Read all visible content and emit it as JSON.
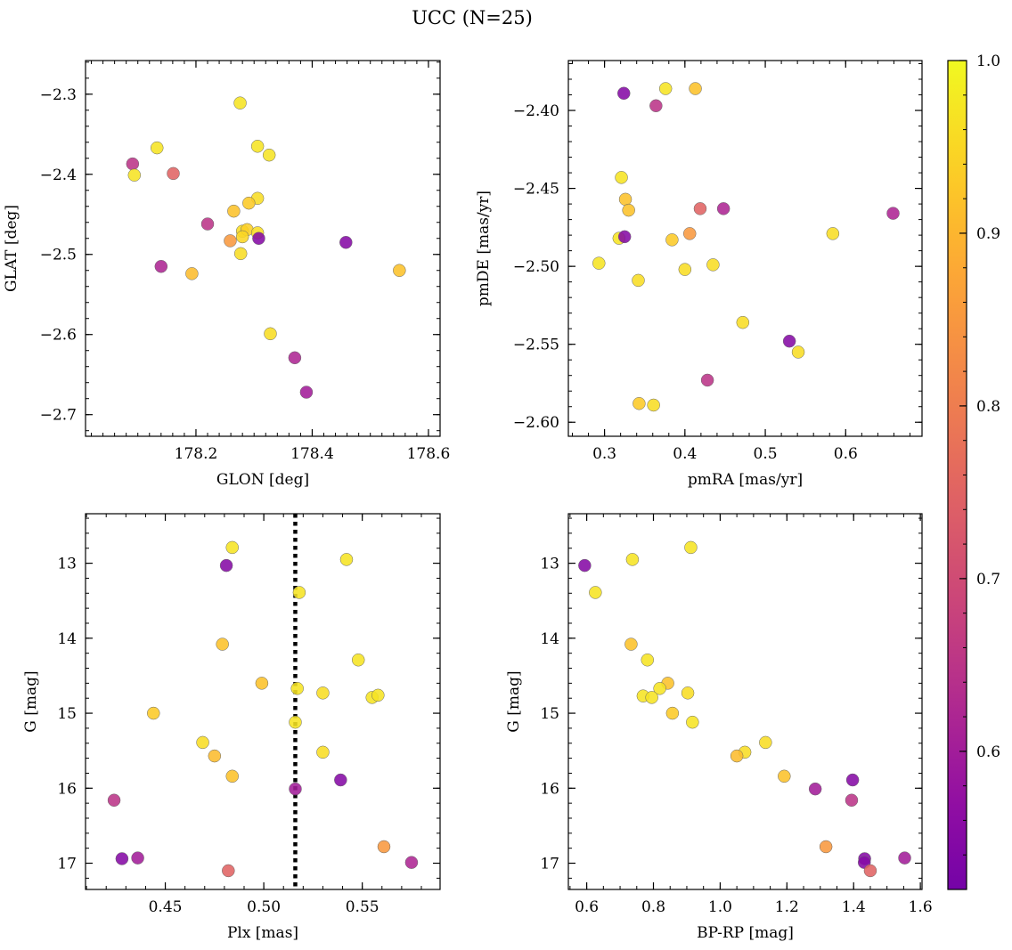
{
  "figure": {
    "title": "UCC (N=25)",
    "colorbar": {
      "range": [
        0.52,
        1.0
      ],
      "ticks": [
        0.6,
        0.7,
        0.8,
        0.9,
        1.0
      ],
      "tick_labels": [
        "0.6",
        "0.7",
        "0.8",
        "0.9",
        "1.0"
      ],
      "colormap": "plasma"
    }
  },
  "chart_data": [
    {
      "type": "scatter",
      "xlabel": "GLON [deg]",
      "ylabel": "GLAT [deg]",
      "xlim": [
        178.01,
        178.62
      ],
      "ylim": [
        -2.727,
        -2.258
      ],
      "xticks": [
        178.2,
        178.4,
        178.6
      ],
      "xtick_labels": [
        "178.2",
        "178.4",
        "178.6"
      ],
      "yticks": [
        -2.3,
        -2.4,
        -2.5,
        -2.6,
        -2.7
      ],
      "ytick_labels": [
        "−2.3",
        "−2.4",
        "−2.5",
        "−2.6",
        "−2.7"
      ],
      "y_inverted": false,
      "points": [
        {
          "x": 178.276,
          "y": -2.311,
          "c": 0.97
        },
        {
          "x": 178.133,
          "y": -2.367,
          "c": 0.97
        },
        {
          "x": 178.306,
          "y": -2.365,
          "c": 0.97
        },
        {
          "x": 178.326,
          "y": -2.376,
          "c": 0.97
        },
        {
          "x": 178.091,
          "y": -2.387,
          "c": 0.65
        },
        {
          "x": 178.094,
          "y": -2.401,
          "c": 0.97
        },
        {
          "x": 178.161,
          "y": -2.399,
          "c": 0.75
        },
        {
          "x": 178.306,
          "y": -2.43,
          "c": 0.96
        },
        {
          "x": 178.291,
          "y": -2.436,
          "c": 0.93
        },
        {
          "x": 178.265,
          "y": -2.446,
          "c": 0.92
        },
        {
          "x": 178.22,
          "y": -2.462,
          "c": 0.65
        },
        {
          "x": 178.28,
          "y": -2.471,
          "c": 0.96
        },
        {
          "x": 178.288,
          "y": -2.469,
          "c": 0.94
        },
        {
          "x": 178.306,
          "y": -2.473,
          "c": 0.96
        },
        {
          "x": 178.28,
          "y": -2.478,
          "c": 0.95
        },
        {
          "x": 178.259,
          "y": -2.483,
          "c": 0.85
        },
        {
          "x": 178.308,
          "y": -2.48,
          "c": 0.55
        },
        {
          "x": 178.458,
          "y": -2.485,
          "c": 0.55
        },
        {
          "x": 178.277,
          "y": -2.499,
          "c": 0.96
        },
        {
          "x": 178.14,
          "y": -2.515,
          "c": 0.62
        },
        {
          "x": 178.193,
          "y": -2.524,
          "c": 0.91
        },
        {
          "x": 178.55,
          "y": -2.52,
          "c": 0.92
        },
        {
          "x": 178.328,
          "y": -2.599,
          "c": 0.96
        },
        {
          "x": 178.37,
          "y": -2.629,
          "c": 0.62
        },
        {
          "x": 178.39,
          "y": -2.672,
          "c": 0.6
        }
      ]
    },
    {
      "type": "scatter",
      "xlabel": "pmRA [mas/yr]",
      "ylabel": "pmDE [mas/yr]",
      "xlim": [
        0.255,
        0.695
      ],
      "ylim": [
        -2.609,
        -2.368
      ],
      "xticks": [
        0.3,
        0.4,
        0.5,
        0.6
      ],
      "xtick_labels": [
        "0.3",
        "0.4",
        "0.5",
        "0.6"
      ],
      "yticks": [
        -2.4,
        -2.45,
        -2.5,
        -2.55,
        -2.6
      ],
      "ytick_labels": [
        "−2.40",
        "−2.45",
        "−2.50",
        "−2.55",
        "−2.60"
      ],
      "y_inverted": false,
      "points": [
        {
          "x": 0.376,
          "y": -2.386,
          "c": 0.97
        },
        {
          "x": 0.413,
          "y": -2.386,
          "c": 0.92
        },
        {
          "x": 0.324,
          "y": -2.389,
          "c": 0.55
        },
        {
          "x": 0.364,
          "y": -2.397,
          "c": 0.65
        },
        {
          "x": 0.321,
          "y": -2.443,
          "c": 0.97
        },
        {
          "x": 0.326,
          "y": -2.457,
          "c": 0.92
        },
        {
          "x": 0.33,
          "y": -2.464,
          "c": 0.92
        },
        {
          "x": 0.419,
          "y": -2.463,
          "c": 0.75
        },
        {
          "x": 0.448,
          "y": -2.463,
          "c": 0.62
        },
        {
          "x": 0.659,
          "y": -2.466,
          "c": 0.62
        },
        {
          "x": 0.318,
          "y": -2.482,
          "c": 0.97
        },
        {
          "x": 0.325,
          "y": -2.481,
          "c": 0.55
        },
        {
          "x": 0.384,
          "y": -2.483,
          "c": 0.93
        },
        {
          "x": 0.406,
          "y": -2.479,
          "c": 0.85
        },
        {
          "x": 0.584,
          "y": -2.479,
          "c": 0.96
        },
        {
          "x": 0.293,
          "y": -2.498,
          "c": 0.97
        },
        {
          "x": 0.4,
          "y": -2.502,
          "c": 0.96
        },
        {
          "x": 0.435,
          "y": -2.499,
          "c": 0.96
        },
        {
          "x": 0.342,
          "y": -2.509,
          "c": 0.96
        },
        {
          "x": 0.472,
          "y": -2.536,
          "c": 0.96
        },
        {
          "x": 0.53,
          "y": -2.548,
          "c": 0.55
        },
        {
          "x": 0.541,
          "y": -2.555,
          "c": 0.96
        },
        {
          "x": 0.428,
          "y": -2.573,
          "c": 0.65
        },
        {
          "x": 0.343,
          "y": -2.588,
          "c": 0.93
        },
        {
          "x": 0.361,
          "y": -2.589,
          "c": 0.96
        }
      ]
    },
    {
      "type": "scatter",
      "xlabel": "Plx [mas]",
      "ylabel": "G [mag]",
      "xlim": [
        0.4095,
        0.5895
      ],
      "ylim": [
        12.34,
        17.35
      ],
      "xticks": [
        0.45,
        0.5,
        0.55
      ],
      "xtick_labels": [
        "0.45",
        "0.50",
        "0.55"
      ],
      "yticks": [
        13,
        14,
        15,
        16,
        17
      ],
      "ytick_labels": [
        "13",
        "14",
        "15",
        "16",
        "17"
      ],
      "y_inverted": true,
      "vline": {
        "x": 0.516,
        "style": "dotted"
      },
      "points": [
        {
          "x": 0.484,
          "y": 12.79,
          "c": 0.97
        },
        {
          "x": 0.542,
          "y": 12.95,
          "c": 0.97
        },
        {
          "x": 0.481,
          "y": 13.03,
          "c": 0.55
        },
        {
          "x": 0.518,
          "y": 13.39,
          "c": 0.97
        },
        {
          "x": 0.479,
          "y": 14.08,
          "c": 0.92
        },
        {
          "x": 0.548,
          "y": 14.29,
          "c": 0.97
        },
        {
          "x": 0.499,
          "y": 14.6,
          "c": 0.92
        },
        {
          "x": 0.517,
          "y": 14.67,
          "c": 0.97
        },
        {
          "x": 0.53,
          "y": 14.73,
          "c": 0.96
        },
        {
          "x": 0.555,
          "y": 14.79,
          "c": 0.97
        },
        {
          "x": 0.558,
          "y": 14.76,
          "c": 0.97
        },
        {
          "x": 0.444,
          "y": 15.0,
          "c": 0.93
        },
        {
          "x": 0.516,
          "y": 15.12,
          "c": 0.97
        },
        {
          "x": 0.469,
          "y": 15.39,
          "c": 0.96
        },
        {
          "x": 0.53,
          "y": 15.52,
          "c": 0.96
        },
        {
          "x": 0.475,
          "y": 15.57,
          "c": 0.91
        },
        {
          "x": 0.484,
          "y": 15.84,
          "c": 0.92
        },
        {
          "x": 0.539,
          "y": 15.89,
          "c": 0.55
        },
        {
          "x": 0.516,
          "y": 16.01,
          "c": 0.6
        },
        {
          "x": 0.424,
          "y": 16.16,
          "c": 0.65
        },
        {
          "x": 0.561,
          "y": 16.78,
          "c": 0.85
        },
        {
          "x": 0.428,
          "y": 16.94,
          "c": 0.55
        },
        {
          "x": 0.436,
          "y": 16.93,
          "c": 0.6
        },
        {
          "x": 0.575,
          "y": 16.99,
          "c": 0.62
        },
        {
          "x": 0.482,
          "y": 17.1,
          "c": 0.75
        }
      ]
    },
    {
      "type": "scatter",
      "xlabel": "BP-RP [mag]",
      "ylabel": "G [mag]",
      "xlim": [
        0.545,
        1.605
      ],
      "ylim": [
        12.34,
        17.35
      ],
      "xticks": [
        0.6,
        0.8,
        1.0,
        1.2,
        1.4,
        1.6
      ],
      "xtick_labels": [
        "0.6",
        "0.8",
        "1.0",
        "1.2",
        "1.4",
        "1.6"
      ],
      "yticks": [
        13,
        14,
        15,
        16,
        17
      ],
      "ytick_labels": [
        "13",
        "14",
        "15",
        "16",
        "17"
      ],
      "y_inverted": true,
      "points": [
        {
          "x": 0.912,
          "y": 12.79,
          "c": 0.97
        },
        {
          "x": 0.737,
          "y": 12.95,
          "c": 0.97
        },
        {
          "x": 0.594,
          "y": 13.03,
          "c": 0.55
        },
        {
          "x": 0.626,
          "y": 13.39,
          "c": 0.97
        },
        {
          "x": 0.733,
          "y": 14.08,
          "c": 0.92
        },
        {
          "x": 0.782,
          "y": 14.29,
          "c": 0.97
        },
        {
          "x": 0.843,
          "y": 14.6,
          "c": 0.92
        },
        {
          "x": 0.819,
          "y": 14.67,
          "c": 0.97
        },
        {
          "x": 0.903,
          "y": 14.73,
          "c": 0.96
        },
        {
          "x": 0.769,
          "y": 14.77,
          "c": 0.97
        },
        {
          "x": 0.795,
          "y": 14.79,
          "c": 0.97
        },
        {
          "x": 0.857,
          "y": 15.0,
          "c": 0.93
        },
        {
          "x": 0.917,
          "y": 15.12,
          "c": 0.97
        },
        {
          "x": 1.136,
          "y": 15.39,
          "c": 0.96
        },
        {
          "x": 1.074,
          "y": 15.52,
          "c": 0.96
        },
        {
          "x": 1.05,
          "y": 15.57,
          "c": 0.91
        },
        {
          "x": 1.192,
          "y": 15.84,
          "c": 0.92
        },
        {
          "x": 1.397,
          "y": 15.89,
          "c": 0.55
        },
        {
          "x": 1.285,
          "y": 16.01,
          "c": 0.6
        },
        {
          "x": 1.394,
          "y": 16.16,
          "c": 0.65
        },
        {
          "x": 1.317,
          "y": 16.78,
          "c": 0.85
        },
        {
          "x": 1.433,
          "y": 16.94,
          "c": 0.55
        },
        {
          "x": 1.432,
          "y": 16.99,
          "c": 0.55
        },
        {
          "x": 1.553,
          "y": 16.93,
          "c": 0.6
        },
        {
          "x": 1.45,
          "y": 17.1,
          "c": 0.75
        }
      ]
    }
  ]
}
